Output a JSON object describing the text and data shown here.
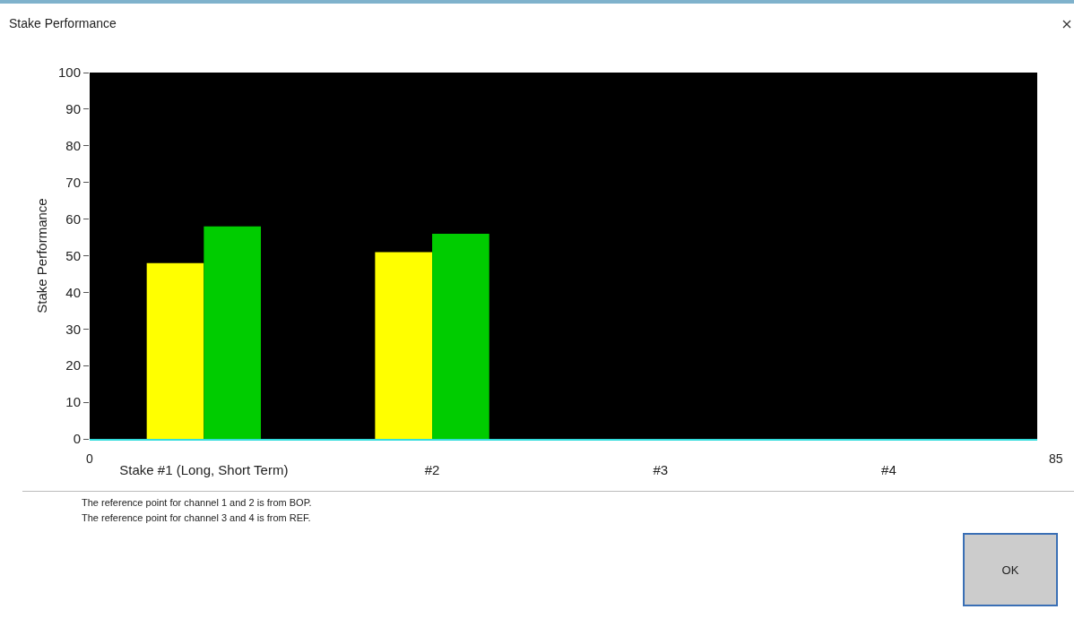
{
  "chart_data": {
    "type": "bar",
    "title": "Stake Performance",
    "ylabel": "Stake Performance",
    "categories": [
      "Stake #1 (Long, Short Term)",
      "#2",
      "#3",
      "#4"
    ],
    "series": [
      {
        "color": "#ffff00",
        "values": [
          48,
          51,
          0,
          0
        ]
      },
      {
        "color": "#00cc00",
        "values": [
          58,
          56,
          0,
          0
        ]
      }
    ],
    "ylim": [
      0,
      100
    ],
    "yticks": [
      0,
      10,
      20,
      30,
      40,
      50,
      60,
      70,
      80,
      90,
      100
    ],
    "grid": false,
    "annotations": [
      "0",
      "85",
      "The reference point for channel 1 and 2 is from BOP.",
      "The reference point for channel 3 and 4 is from REF.",
      "OK"
    ]
  }
}
